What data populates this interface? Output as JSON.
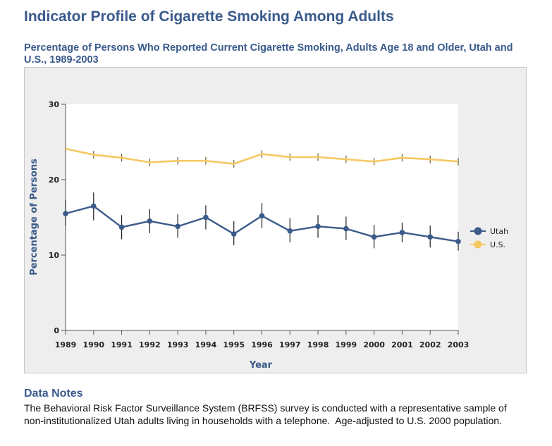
{
  "page": {
    "title": "Indicator Profile of Cigarette Smoking Among Adults",
    "notes_title": "Data Notes",
    "notes_text": "The Behavioral Risk Factor Surveillance System (BRFSS) survey is conducted with a representative sample of non-institutionalized Utah adults living in households with a telephone.  Age-adjusted to U.S. 2000 population."
  },
  "chart_data": {
    "type": "line",
    "title": "Percentage of Persons Who Reported Current Cigarette Smoking, Adults Age 18 and Older, Utah and U.S., 1989-2003",
    "xlabel": "Year",
    "ylabel": "Percentage of Persons",
    "categories": [
      "1989",
      "1990",
      "1991",
      "1992",
      "1993",
      "1994",
      "1995",
      "1996",
      "1997",
      "1998",
      "1999",
      "2000",
      "2001",
      "2002",
      "2003"
    ],
    "ylim": [
      0,
      30
    ],
    "yticks": [
      0,
      10,
      20,
      30
    ],
    "grid": false,
    "legend_position": "right",
    "series": [
      {
        "name": "Utah",
        "color": "#3b5b8a",
        "marker": true,
        "values": [
          15.5,
          16.5,
          13.7,
          14.5,
          13.8,
          15.0,
          12.8,
          15.2,
          13.2,
          13.8,
          13.5,
          12.4,
          13.0,
          12.4,
          11.8
        ],
        "ci_low": [
          13.9,
          14.6,
          12.1,
          12.9,
          12.3,
          13.4,
          11.3,
          13.6,
          11.7,
          12.3,
          12.0,
          10.9,
          11.7,
          11.0,
          10.6
        ],
        "ci_high": [
          17.3,
          18.3,
          15.3,
          16.1,
          15.4,
          16.6,
          14.5,
          16.9,
          14.9,
          15.3,
          15.1,
          14.0,
          14.3,
          13.9,
          13.1
        ]
      },
      {
        "name": "U.S.",
        "color": "#f5c862",
        "marker": false,
        "values": [
          24.1,
          23.3,
          22.9,
          22.3,
          22.5,
          22.5,
          22.1,
          23.4,
          23.0,
          23.0,
          22.7,
          22.4,
          22.9,
          22.7,
          22.4
        ],
        "ci_low": [
          23.6,
          22.8,
          22.4,
          21.8,
          22.0,
          22.0,
          21.6,
          22.9,
          22.5,
          22.5,
          22.2,
          21.9,
          22.4,
          22.2,
          21.9
        ],
        "ci_high": [
          24.6,
          23.8,
          23.4,
          22.8,
          23.0,
          23.0,
          22.6,
          23.9,
          23.5,
          23.5,
          23.2,
          22.9,
          23.4,
          23.2,
          22.9
        ]
      }
    ]
  }
}
